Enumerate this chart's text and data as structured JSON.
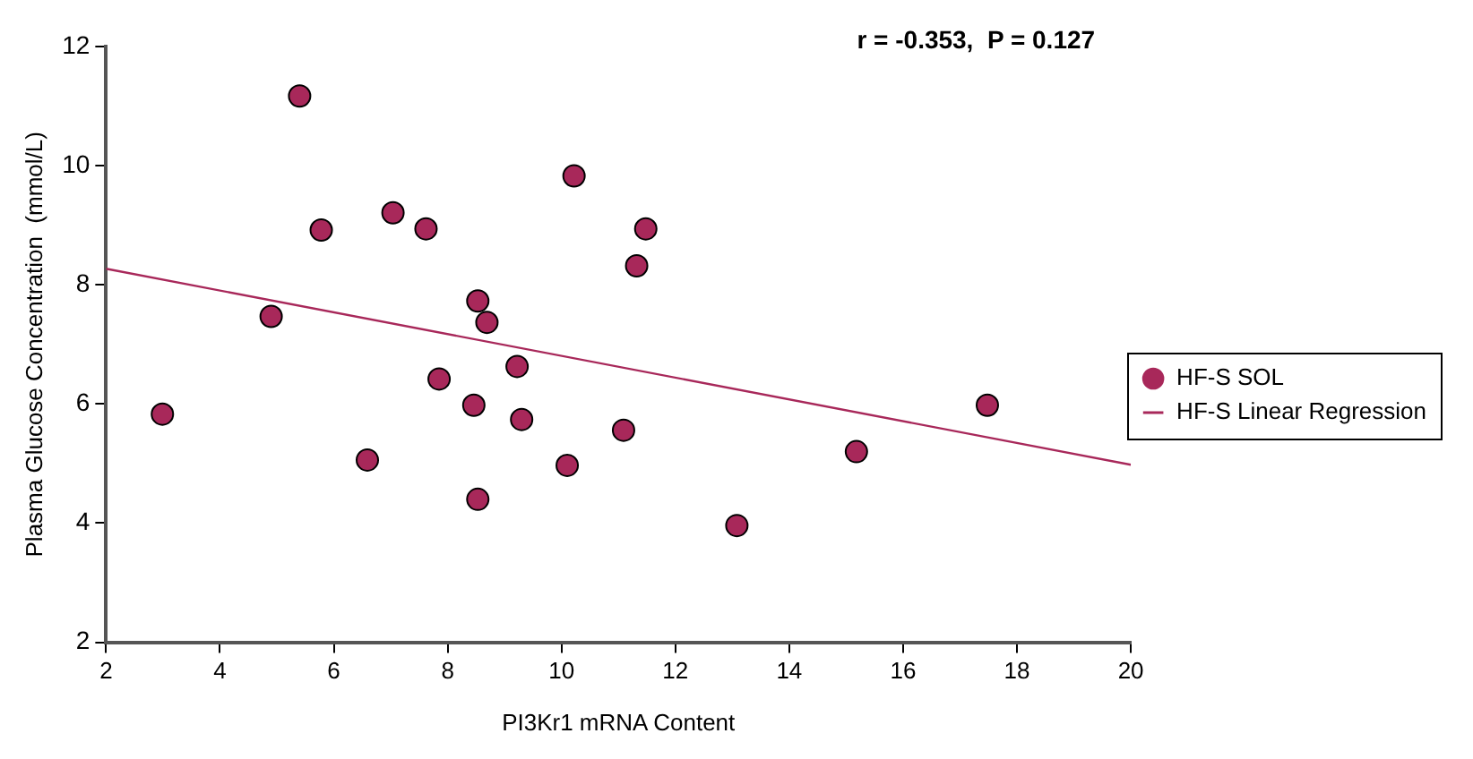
{
  "chart_data": {
    "type": "scatter",
    "xlabel": "PI3Kr1 mRNA Content",
    "ylabel": "Plasma Glucose Concentration  (mmol/L)",
    "annotations": [
      "r = -0.353,  P = 0.127"
    ],
    "xlim": [
      2,
      20
    ],
    "xticks": [
      2,
      4,
      6,
      8,
      10,
      12,
      14,
      16,
      18,
      20
    ],
    "ylim": [
      2,
      12
    ],
    "yticks": [
      2,
      4,
      6,
      8,
      10,
      12
    ],
    "grid": false,
    "legend": "right",
    "marker": "circle",
    "series": [
      {
        "name": "HF-S SOL",
        "color": "#a8285a",
        "x": [
          2.99,
          5.4,
          5.78,
          4.9,
          7.04,
          7.62,
          8.53,
          8.69,
          7.85,
          8.46,
          6.59,
          8.53,
          9.22,
          9.3,
          10.1,
          10.22,
          11.09,
          11.32,
          11.48,
          13.08,
          15.18,
          17.48
        ],
        "values": [
          5.83,
          11.17,
          8.92,
          7.47,
          9.21,
          8.94,
          7.73,
          7.37,
          6.42,
          5.98,
          5.06,
          4.4,
          6.63,
          5.74,
          4.97,
          9.83,
          5.56,
          8.32,
          8.94,
          3.96,
          5.2,
          5.98
        ]
      },
      {
        "name": "HF-S Linear Regression",
        "type": "line",
        "color": "#a8285a",
        "line_style": "solid",
        "marker": "none",
        "x": [
          2,
          20
        ],
        "values": [
          8.27,
          4.98
        ]
      }
    ]
  }
}
